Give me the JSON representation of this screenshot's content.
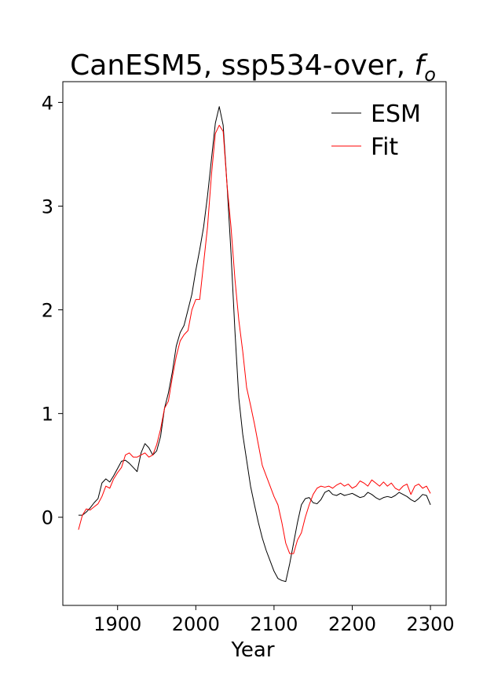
{
  "chart_data": {
    "type": "line",
    "title": "CanESM5, ssp534-over, ",
    "title_italic": "f",
    "title_sub": "o",
    "xlabel": "Year",
    "ylabel": "",
    "xlim": [
      1830,
      2320
    ],
    "ylim": [
      -0.85,
      4.2
    ],
    "xticks": [
      1900,
      2000,
      2100,
      2200,
      2300
    ],
    "yticks": [
      0,
      1,
      2,
      3,
      4
    ],
    "grid": false,
    "legend_position": "top-right",
    "series": [
      {
        "name": "ESM",
        "color": "#000000",
        "x": [
          1850,
          1855,
          1860,
          1865,
          1870,
          1875,
          1880,
          1885,
          1890,
          1895,
          1900,
          1905,
          1910,
          1915,
          1920,
          1925,
          1930,
          1935,
          1940,
          1945,
          1950,
          1955,
          1960,
          1965,
          1970,
          1975,
          1980,
          1985,
          1990,
          1995,
          2000,
          2005,
          2010,
          2015,
          2020,
          2025,
          2030,
          2035,
          2040,
          2045,
          2050,
          2055,
          2060,
          2065,
          2070,
          2075,
          2080,
          2085,
          2090,
          2095,
          2100,
          2105,
          2110,
          2115,
          2120,
          2125,
          2130,
          2135,
          2140,
          2145,
          2150,
          2155,
          2160,
          2165,
          2170,
          2175,
          2180,
          2185,
          2190,
          2195,
          2200,
          2205,
          2210,
          2215,
          2220,
          2225,
          2230,
          2235,
          2240,
          2245,
          2250,
          2255,
          2260,
          2265,
          2270,
          2275,
          2280,
          2285,
          2290,
          2295,
          2300
        ],
        "y": [
          0.02,
          0.02,
          0.05,
          0.09,
          0.14,
          0.18,
          0.33,
          0.37,
          0.34,
          0.4,
          0.47,
          0.54,
          0.55,
          0.52,
          0.48,
          0.44,
          0.62,
          0.71,
          0.67,
          0.6,
          0.64,
          0.78,
          1.05,
          1.2,
          1.4,
          1.65,
          1.78,
          1.85,
          2.0,
          2.15,
          2.38,
          2.58,
          2.8,
          3.1,
          3.45,
          3.8,
          3.96,
          3.78,
          3.2,
          2.55,
          1.8,
          1.15,
          0.8,
          0.55,
          0.3,
          0.12,
          -0.05,
          -0.2,
          -0.32,
          -0.42,
          -0.52,
          -0.59,
          -0.61,
          -0.62,
          -0.45,
          -0.25,
          -0.05,
          0.12,
          0.18,
          0.19,
          0.14,
          0.13,
          0.17,
          0.24,
          0.26,
          0.22,
          0.21,
          0.23,
          0.21,
          0.22,
          0.23,
          0.21,
          0.19,
          0.2,
          0.24,
          0.22,
          0.19,
          0.17,
          0.19,
          0.2,
          0.19,
          0.21,
          0.24,
          0.22,
          0.2,
          0.17,
          0.15,
          0.18,
          0.22,
          0.21,
          0.12
        ]
      },
      {
        "name": "Fit",
        "color": "#ff0000",
        "x": [
          1850,
          1855,
          1860,
          1865,
          1870,
          1875,
          1880,
          1885,
          1890,
          1895,
          1900,
          1905,
          1910,
          1915,
          1920,
          1925,
          1930,
          1935,
          1940,
          1945,
          1950,
          1955,
          1960,
          1965,
          1970,
          1975,
          1980,
          1985,
          1990,
          1995,
          2000,
          2005,
          2010,
          2015,
          2020,
          2025,
          2030,
          2035,
          2040,
          2045,
          2050,
          2055,
          2060,
          2065,
          2070,
          2075,
          2080,
          2085,
          2090,
          2095,
          2100,
          2105,
          2110,
          2115,
          2120,
          2125,
          2130,
          2135,
          2140,
          2145,
          2150,
          2155,
          2160,
          2165,
          2170,
          2175,
          2180,
          2185,
          2190,
          2195,
          2200,
          2205,
          2210,
          2215,
          2220,
          2225,
          2230,
          2235,
          2240,
          2245,
          2250,
          2255,
          2260,
          2265,
          2270,
          2275,
          2280,
          2285,
          2290,
          2295,
          2300
        ],
        "y": [
          -0.12,
          0.02,
          0.08,
          0.07,
          0.1,
          0.13,
          0.2,
          0.3,
          0.28,
          0.37,
          0.43,
          0.48,
          0.6,
          0.62,
          0.58,
          0.58,
          0.6,
          0.62,
          0.58,
          0.6,
          0.7,
          0.85,
          1.05,
          1.12,
          1.35,
          1.55,
          1.7,
          1.76,
          1.8,
          2.0,
          2.1,
          2.1,
          2.45,
          2.8,
          3.3,
          3.7,
          3.78,
          3.72,
          3.2,
          2.8,
          2.3,
          1.9,
          1.6,
          1.25,
          1.08,
          0.9,
          0.7,
          0.5,
          0.4,
          0.3,
          0.2,
          0.12,
          -0.05,
          -0.25,
          -0.35,
          -0.35,
          -0.22,
          -0.15,
          0.0,
          0.12,
          0.22,
          0.28,
          0.3,
          0.29,
          0.3,
          0.28,
          0.31,
          0.33,
          0.3,
          0.32,
          0.28,
          0.3,
          0.35,
          0.33,
          0.3,
          0.36,
          0.33,
          0.3,
          0.34,
          0.3,
          0.33,
          0.28,
          0.26,
          0.3,
          0.32,
          0.22,
          0.3,
          0.32,
          0.28,
          0.3,
          0.23
        ]
      }
    ]
  }
}
